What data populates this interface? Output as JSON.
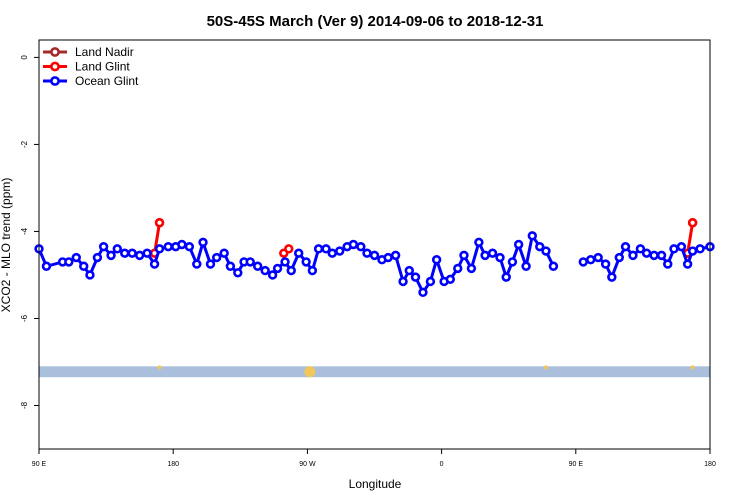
{
  "chart_data": {
    "type": "line",
    "title": "50S-45S March (Ver 9)   2014-09-06 to 2018-12-31",
    "xlabel": "Longitude",
    "ylabel": "XCO2 - MLO trend (ppm)",
    "xlim": [
      -90,
      180
    ],
    "ylim": [
      -9,
      0.4
    ],
    "x_ticks": [
      {
        "value": -90,
        "label": "90 E"
      },
      {
        "value": -36,
        "label": "180"
      },
      {
        "value": 18,
        "label": "90 W"
      },
      {
        "value": 72,
        "label": "0"
      },
      {
        "value": 126,
        "label": "90 E"
      },
      {
        "value": 180,
        "label": "180"
      }
    ],
    "y_ticks": [
      {
        "value": 0,
        "label": "0"
      },
      {
        "value": -2,
        "label": "-2"
      },
      {
        "value": -4,
        "label": "-4"
      },
      {
        "value": -6,
        "label": "-6"
      },
      {
        "value": -8,
        "label": "-8"
      }
    ],
    "legend": {
      "position": "top-left"
    },
    "series": [
      {
        "name": "Land Nadir",
        "color": "#a52a2a",
        "points": []
      },
      {
        "name": "Land Glint",
        "color": "#ff0000",
        "points": [
          [
            -43.5,
            -4.5
          ],
          [
            -41.5,
            -3.8
          ],
          [
            8.5,
            -4.5
          ],
          [
            10.5,
            -4.4
          ],
          [
            171,
            -4.5
          ],
          [
            173,
            -3.8
          ]
        ]
      },
      {
        "name": "Ocean Glint",
        "color": "#0000ff",
        "segments": [
          [
            [
              -90,
              -4.4
            ],
            [
              -87,
              -4.8
            ],
            [
              -80.5,
              -4.7
            ],
            [
              -78,
              -4.7
            ],
            [
              -75,
              -4.6
            ],
            [
              -72,
              -4.8
            ],
            [
              -69.5,
              -5.0
            ],
            [
              -66.5,
              -4.6
            ],
            [
              -64,
              -4.35
            ],
            [
              -61,
              -4.55
            ],
            [
              -58.5,
              -4.4
            ],
            [
              -55.5,
              -4.5
            ],
            [
              -52.5,
              -4.5
            ],
            [
              -49.5,
              -4.55
            ],
            [
              -46.5,
              -4.5
            ],
            [
              -43.5,
              -4.75
            ],
            [
              -41.5,
              -4.4
            ],
            [
              -38,
              -4.35
            ],
            [
              -35,
              -4.35
            ],
            [
              -32.5,
              -4.3
            ],
            [
              -29.5,
              -4.35
            ],
            [
              -26.5,
              -4.75
            ],
            [
              -24,
              -4.25
            ],
            [
              -21,
              -4.75
            ],
            [
              -18.5,
              -4.6
            ],
            [
              -15.5,
              -4.5
            ],
            [
              -13,
              -4.8
            ],
            [
              -10,
              -4.95
            ],
            [
              -7.5,
              -4.7
            ],
            [
              -5,
              -4.7
            ],
            [
              -2,
              -4.8
            ],
            [
              1,
              -4.9
            ],
            [
              4,
              -5.0
            ],
            [
              6,
              -4.85
            ],
            [
              9,
              -4.7
            ],
            [
              11.5,
              -4.9
            ],
            [
              14.5,
              -4.5
            ],
            [
              17.5,
              -4.7
            ],
            [
              20,
              -4.9
            ],
            [
              22.5,
              -4.4
            ],
            [
              25.5,
              -4.4
            ],
            [
              28,
              -4.5
            ],
            [
              31,
              -4.45
            ],
            [
              34,
              -4.35
            ],
            [
              36.5,
              -4.3
            ],
            [
              39.5,
              -4.35
            ],
            [
              42,
              -4.5
            ],
            [
              45,
              -4.55
            ],
            [
              48,
              -4.65
            ],
            [
              50.5,
              -4.6
            ],
            [
              53.5,
              -4.55
            ],
            [
              56.5,
              -5.15
            ],
            [
              59,
              -4.9
            ],
            [
              61.5,
              -5.05
            ],
            [
              64.5,
              -5.4
            ],
            [
              67.5,
              -5.15
            ],
            [
              70,
              -4.65
            ],
            [
              73,
              -5.15
            ],
            [
              75.5,
              -5.1
            ],
            [
              78.5,
              -4.85
            ],
            [
              81,
              -4.55
            ],
            [
              84,
              -4.85
            ],
            [
              87,
              -4.25
            ],
            [
              89.5,
              -4.55
            ],
            [
              92.5,
              -4.5
            ],
            [
              95.5,
              -4.6
            ],
            [
              98,
              -5.05
            ],
            [
              100.5,
              -4.7
            ],
            [
              103,
              -4.3
            ],
            [
              106,
              -4.8
            ],
            [
              108.5,
              -4.1
            ],
            [
              111.5,
              -4.35
            ],
            [
              114,
              -4.45
            ],
            [
              117,
              -4.8
            ]
          ],
          [
            [
              129,
              -4.7
            ],
            [
              132,
              -4.65
            ],
            [
              135,
              -4.6
            ],
            [
              138,
              -4.75
            ],
            [
              140.5,
              -5.05
            ],
            [
              143.5,
              -4.6
            ],
            [
              146,
              -4.35
            ],
            [
              149,
              -4.55
            ],
            [
              152,
              -4.4
            ],
            [
              154.5,
              -4.5
            ],
            [
              157.5,
              -4.55
            ],
            [
              160.5,
              -4.55
            ],
            [
              163,
              -4.75
            ],
            [
              165.5,
              -4.4
            ],
            [
              168.5,
              -4.35
            ],
            [
              171,
              -4.75
            ],
            [
              173,
              -4.45
            ],
            [
              176,
              -4.4
            ],
            [
              180,
              -4.35
            ]
          ]
        ]
      }
    ],
    "band": {
      "y_top": -7.1,
      "y_bottom": -7.35,
      "color": "#a9bfdc"
    },
    "band_markers": [
      {
        "x": -41.5,
        "size": "small",
        "color": "#f2c65a"
      },
      {
        "x": 19,
        "size": "large",
        "color": "#f2c65a"
      },
      {
        "x": 114,
        "size": "small",
        "color": "#f2c65a"
      },
      {
        "x": 173,
        "size": "small",
        "color": "#f2c65a"
      }
    ]
  }
}
